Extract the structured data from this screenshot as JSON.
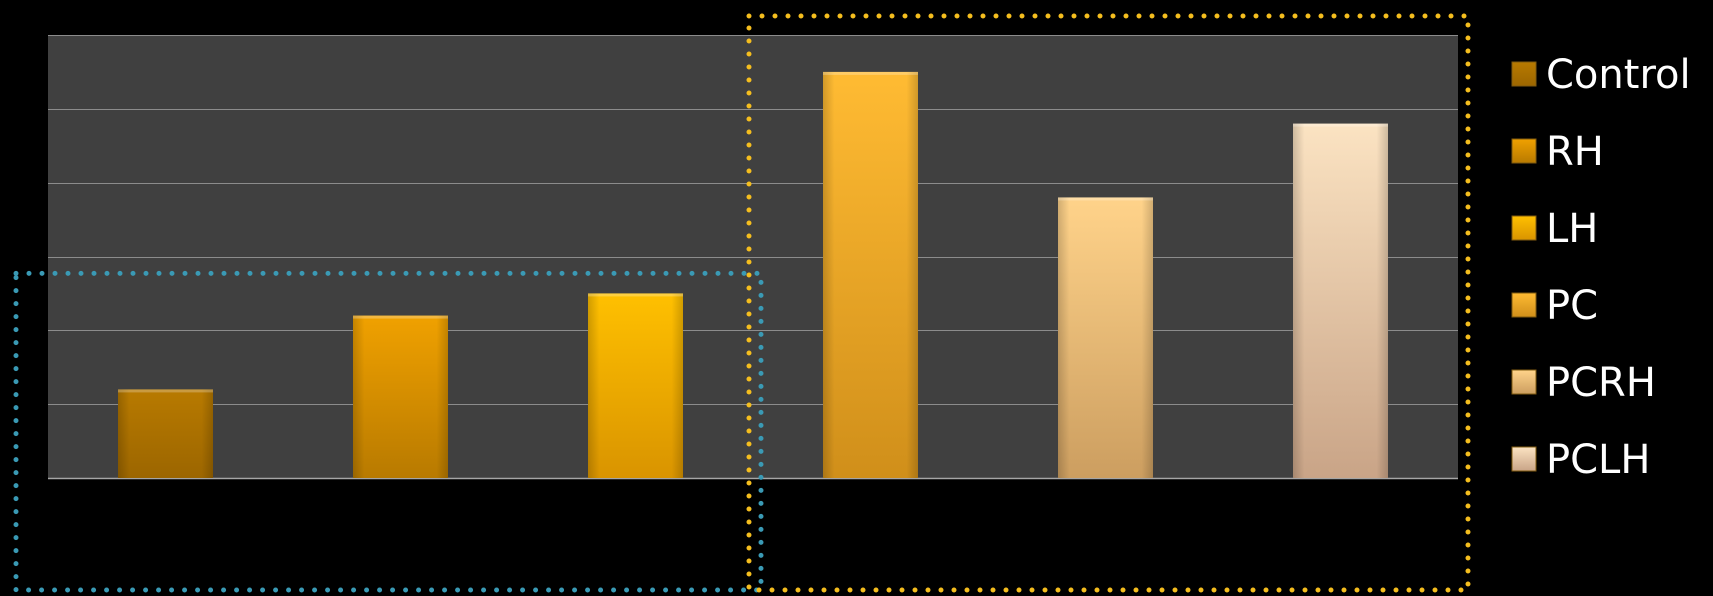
{
  "chart_data": {
    "type": "bar",
    "categories": [
      "Control",
      "RH",
      "LH",
      "PC",
      "PCRH",
      "PCLH"
    ],
    "values": [
      1.2,
      2.2,
      2.5,
      5.5,
      3.8,
      4.8
    ],
    "ylim": [
      0,
      6
    ],
    "y_gridlines": [
      1,
      2,
      3,
      4,
      5,
      6
    ],
    "grid": true,
    "legend_placement": "right",
    "x_tick_labels_shown": false,
    "y_tick_labels_shown": false,
    "series": [
      {
        "name": "Control",
        "category": "Control",
        "value": 1.2,
        "color_top": "#b87a00",
        "color_bottom": "#9c6600"
      },
      {
        "name": "RH",
        "category": "RH",
        "value": 2.2,
        "color_top": "#f0a100",
        "color_bottom": "#b87a00"
      },
      {
        "name": "LH",
        "category": "LH",
        "value": 2.5,
        "color_top": "#ffc000",
        "color_bottom": "#d99400"
      },
      {
        "name": "PC",
        "category": "PC",
        "value": 5.5,
        "color_top": "#ffbb33",
        "color_bottom": "#d08f1a"
      },
      {
        "name": "PCRH",
        "category": "PCRH",
        "value": 3.8,
        "color_top": "#ffd38a",
        "color_bottom": "#cc9e60"
      },
      {
        "name": "PCLH",
        "category": "PCLH",
        "value": 4.8,
        "color_top": "#fbe3c2",
        "color_bottom": "#c9a487"
      }
    ],
    "colors": {
      "background": "#000000",
      "plot_area": "#404040",
      "gridline": "#8c8c8c",
      "legend_text": "#ffffff"
    },
    "annotations": [
      {
        "type": "dotted-box",
        "groups": [
          "Control",
          "RH",
          "LH"
        ],
        "color": "#3a9ab5"
      },
      {
        "type": "dotted-box",
        "groups": [
          "PC",
          "PCRH",
          "PCLH"
        ],
        "color": "#f5be1e"
      }
    ]
  }
}
